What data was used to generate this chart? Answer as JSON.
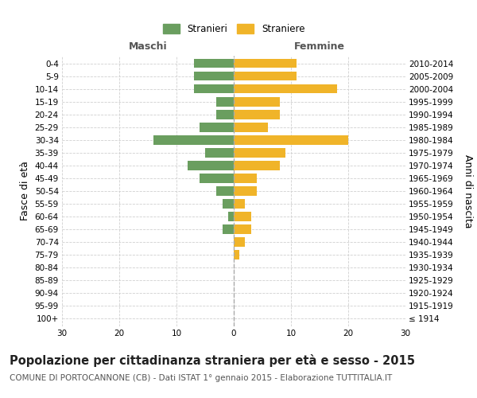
{
  "age_groups": [
    "100+",
    "95-99",
    "90-94",
    "85-89",
    "80-84",
    "75-79",
    "70-74",
    "65-69",
    "60-64",
    "55-59",
    "50-54",
    "45-49",
    "40-44",
    "35-39",
    "30-34",
    "25-29",
    "20-24",
    "15-19",
    "10-14",
    "5-9",
    "0-4"
  ],
  "birth_years": [
    "≤ 1914",
    "1915-1919",
    "1920-1924",
    "1925-1929",
    "1930-1934",
    "1935-1939",
    "1940-1944",
    "1945-1949",
    "1950-1954",
    "1955-1959",
    "1960-1964",
    "1965-1969",
    "1970-1974",
    "1975-1979",
    "1980-1984",
    "1985-1989",
    "1990-1994",
    "1995-1999",
    "2000-2004",
    "2005-2009",
    "2010-2014"
  ],
  "males": [
    0,
    0,
    0,
    0,
    0,
    0,
    0,
    2,
    1,
    2,
    3,
    6,
    8,
    5,
    14,
    6,
    3,
    3,
    7,
    7,
    7
  ],
  "females": [
    0,
    0,
    0,
    0,
    0,
    1,
    2,
    3,
    3,
    2,
    4,
    4,
    8,
    9,
    20,
    6,
    8,
    8,
    18,
    11,
    11
  ],
  "male_color": "#6a9e5f",
  "female_color": "#f0b429",
  "background_color": "#ffffff",
  "grid_color": "#d0d0d0",
  "center_line_color": "#aaaaaa",
  "center_line_style": "--",
  "xlim": 30,
  "title": "Popolazione per cittadinanza straniera per età e sesso - 2015",
  "subtitle": "COMUNE DI PORTOCANNONE (CB) - Dati ISTAT 1° gennaio 2015 - Elaborazione TUTTITALIA.IT",
  "xlabel_left": "Maschi",
  "xlabel_right": "Femmine",
  "ylabel_left": "Fasce di età",
  "ylabel_right": "Anni di nascita",
  "legend_male": "Stranieri",
  "legend_female": "Straniere",
  "title_fontsize": 10.5,
  "subtitle_fontsize": 7.5,
  "tick_fontsize": 7.5,
  "label_fontsize": 9,
  "header_fontsize": 9,
  "bar_height": 0.72
}
